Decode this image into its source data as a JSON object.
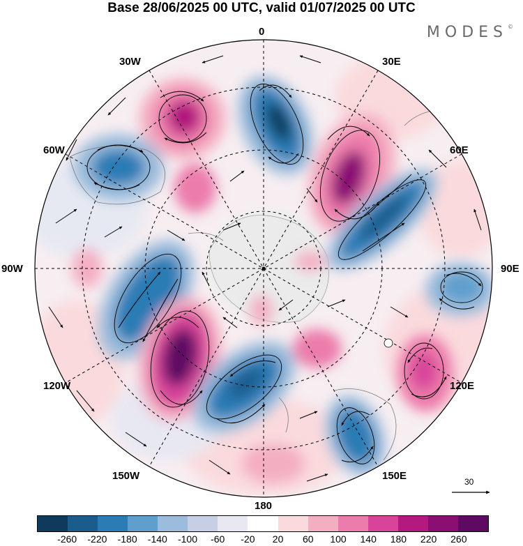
{
  "title": "Base 28/06/2025 00 UTC, valid 01/07/2025 00 UTC",
  "brand": "MODES",
  "brand_mark": "©",
  "longitude_labels": {
    "n0": "0",
    "e30": "30E",
    "e60": "60E",
    "e90": "90E",
    "e120": "120E",
    "e150": "150E",
    "s180": "180",
    "w150": "150W",
    "w120": "120W",
    "w90": "90W",
    "w60": "60W",
    "w30": "30W"
  },
  "reference_vector": "30",
  "colorbar": {
    "colors": [
      "#0f3a5c",
      "#1a5c8c",
      "#2b7cb5",
      "#5e9fcd",
      "#9bbcdc",
      "#c6cfe4",
      "#e8e8f2",
      "#ffffff",
      "#fadadd",
      "#f4aec2",
      "#ec7cab",
      "#d8449a",
      "#b3197f",
      "#8b0f73",
      "#5e0a63"
    ],
    "ticks": [
      "-260",
      "-220",
      "-180",
      "-140",
      "-100",
      "-60",
      "-20",
      "20",
      "60",
      "100",
      "140",
      "180",
      "220",
      "260"
    ]
  },
  "icons": {
    "map": "polar-stereographic-map",
    "vector": "reference-arrow-icon"
  }
}
